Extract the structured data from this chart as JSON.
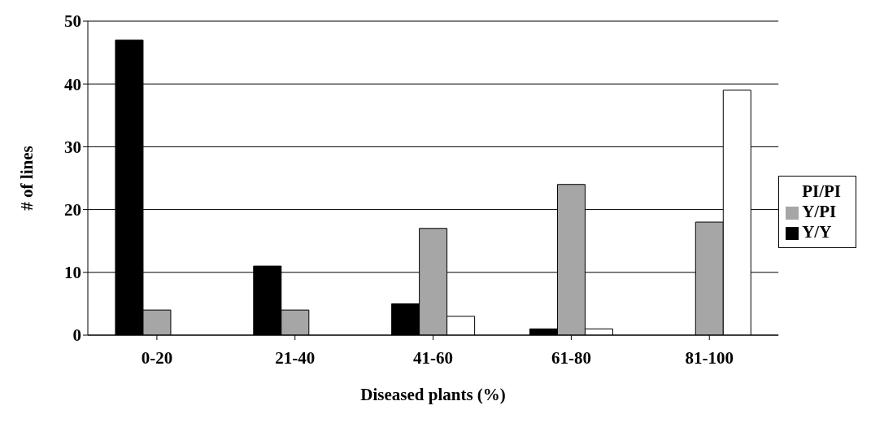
{
  "chart_data": {
    "type": "bar",
    "xlabel": "Diseased plants (%)",
    "ylabel": "# of lines",
    "categories": [
      "0-20",
      "21-40",
      "41-60",
      "61-80",
      "81-100"
    ],
    "series": [
      {
        "name": "Y/Y",
        "color": "#000000",
        "values": [
          47,
          11,
          5,
          1,
          0
        ]
      },
      {
        "name": "Y/PI",
        "color": "#a6a6a6",
        "values": [
          4,
          4,
          17,
          24,
          18
        ]
      },
      {
        "name": "PI/PI",
        "color": "#ffffff",
        "values": [
          0,
          0,
          3,
          1,
          39
        ]
      }
    ],
    "ylim": [
      0,
      50
    ],
    "yticks": [
      0,
      10,
      20,
      30,
      40,
      50
    ],
    "grid": "y",
    "legend": "right"
  }
}
